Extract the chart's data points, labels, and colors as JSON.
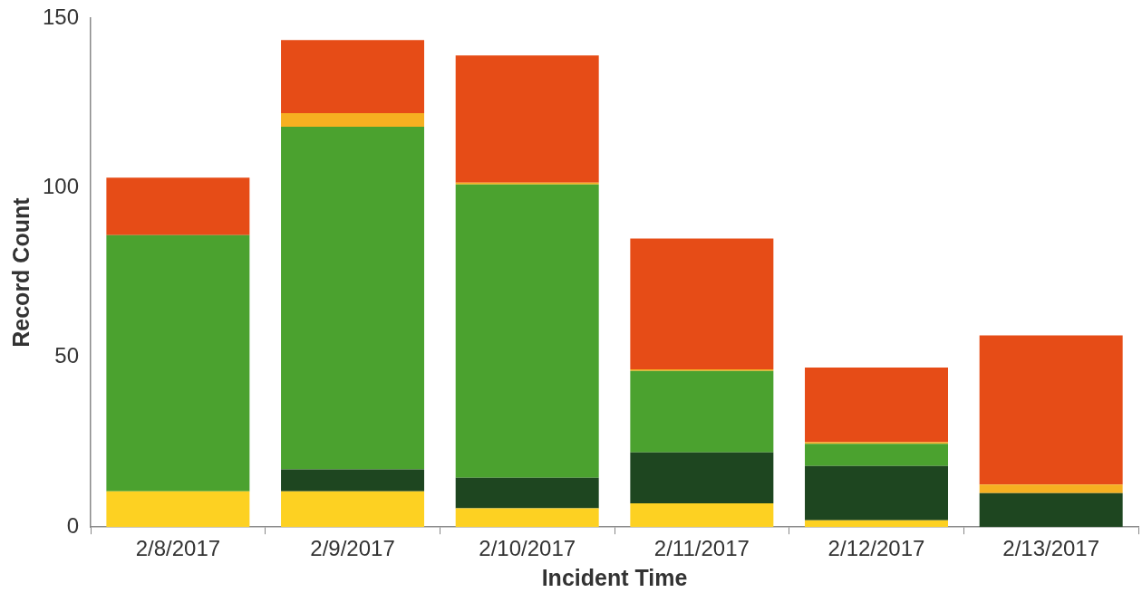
{
  "chart_data": {
    "type": "bar",
    "stacked": true,
    "xlabel": "Incident Time",
    "ylabel": "Record Count",
    "categories": [
      "2/8/2017",
      "2/9/2017",
      "2/10/2017",
      "2/11/2017",
      "2/12/2017",
      "2/13/2017"
    ],
    "series": [
      {
        "color": "#fdd122",
        "values": [
          10.5,
          10.5,
          5.5,
          7,
          2,
          0
        ]
      },
      {
        "color": "#1e4620",
        "values": [
          0,
          6.5,
          9,
          15,
          16,
          10
        ]
      },
      {
        "color": "#4ba22f",
        "values": [
          75.5,
          101,
          86.5,
          24,
          6.5,
          0
        ]
      },
      {
        "color": "#f6b021",
        "values": [
          0,
          4,
          0.5,
          0.5,
          0.5,
          2.5
        ]
      },
      {
        "color": "#e64c17",
        "values": [
          17,
          21.5,
          37.5,
          38.5,
          22,
          44
        ]
      }
    ],
    "ylim": [
      0,
      150
    ],
    "yticks": [
      0,
      50,
      100,
      150
    ],
    "grid": false,
    "legend": false
  }
}
